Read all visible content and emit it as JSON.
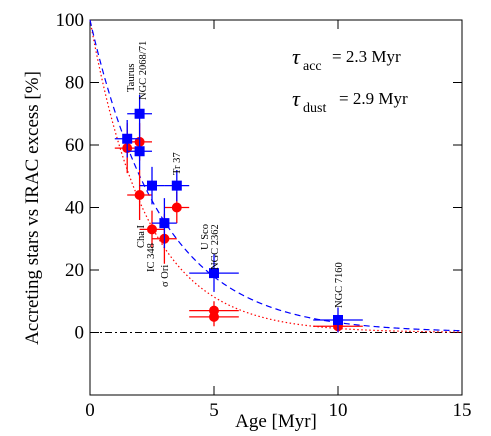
{
  "chart_data": {
    "type": "scatter",
    "xlabel": "Age [Myr]",
    "ylabel": "Accreting stars vs IRAC excess [%]",
    "xlim": [
      0,
      15
    ],
    "ylim": [
      -20,
      100
    ],
    "xticks": [
      0,
      5,
      10,
      15
    ],
    "yticks": [
      0,
      20,
      40,
      60,
      80,
      100
    ],
    "hline": 0,
    "series": [
      {
        "color": "#ff0000",
        "marker": "circle",
        "x": [
          1.5,
          2,
          2,
          2.5,
          3,
          3.5,
          5,
          5,
          10
        ],
        "values": [
          59,
          61,
          44,
          33,
          30,
          40,
          7,
          5,
          2
        ],
        "xerr": [
          0.5,
          0.5,
          0.5,
          0.5,
          0.5,
          0.5,
          1,
          1,
          1
        ],
        "yerr": [
          8,
          6,
          8,
          6,
          8,
          5,
          3,
          3,
          2
        ]
      },
      {
        "color": "#0000ff",
        "marker": "square",
        "x": [
          1.5,
          2,
          2,
          2.5,
          3,
          3.5,
          5,
          10
        ],
        "values": [
          62,
          70,
          58,
          47,
          35,
          47,
          19,
          4
        ],
        "xerr": [
          0.5,
          0.5,
          0.5,
          0.5,
          0.5,
          0.5,
          1,
          1
        ],
        "yerr": [
          6,
          6,
          6,
          6,
          8,
          5,
          6,
          4
        ]
      }
    ],
    "fits": [
      {
        "symbol": "τ",
        "subscript": "acc",
        "text": "= 2.3 Myr",
        "tau": 2.3,
        "amplitude": 100,
        "color": "#ff0000",
        "dash": "dotted"
      },
      {
        "symbol": "τ",
        "subscript": "dust",
        "text": "= 2.9 Myr",
        "tau": 2.9,
        "amplitude": 100,
        "color": "#0000ff",
        "dash": "dashed"
      }
    ],
    "annotations": [
      "Taurus",
      "NGC 2068/71",
      "Tr 37",
      "Cha I",
      "IC 348",
      "σ Ori",
      "U Sco",
      "NGC 2362",
      "NGC 7160"
    ]
  }
}
